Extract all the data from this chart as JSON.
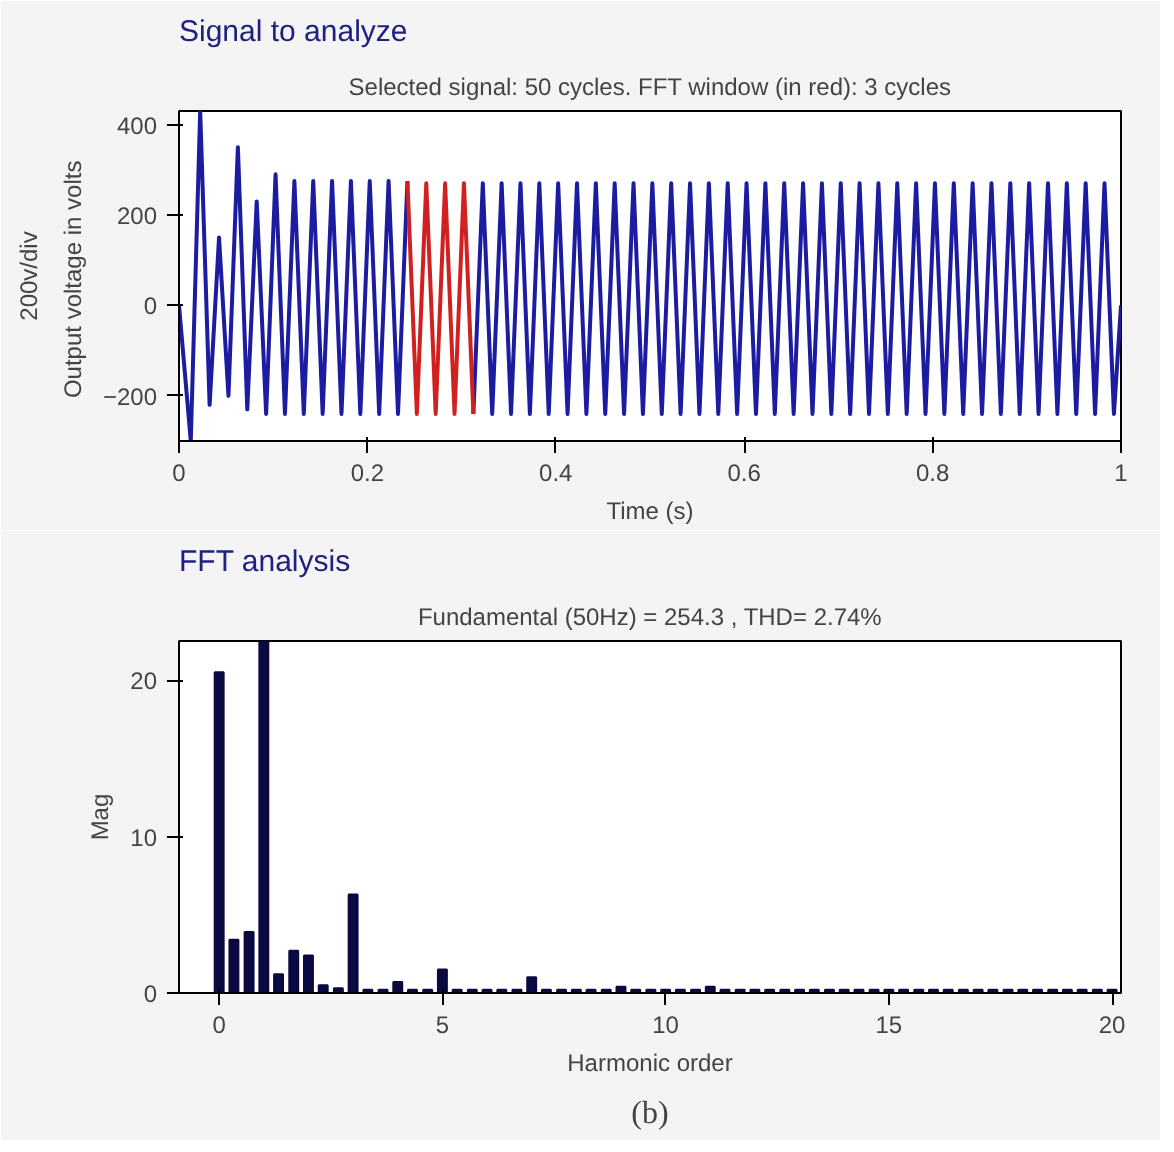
{
  "chart_data": [
    {
      "type": "line",
      "title": "Signal to analyze",
      "subtitle": "Selected signal: 50 cycles. FFT window (in red): 3 cycles",
      "xlabel": "Time (s)",
      "ylabel": "Output voltage in  volts",
      "annotations": [
        "200v/div"
      ],
      "xlim": [
        0,
        1
      ],
      "ylim": [
        -300,
        430
      ],
      "xticks": [
        0,
        0.2,
        0.4,
        0.6,
        0.8,
        1
      ],
      "yticks": [
        -200,
        0,
        200,
        400
      ],
      "grid": false,
      "marker": "none",
      "line_style": "solid",
      "series": [
        {
          "color": "#1c1ca0",
          "x": [
            0,
            0.0125,
            0.0225,
            0.0325,
            0.0425,
            0.0525,
            0.0625,
            0.0725,
            0.0825,
            0.0925,
            0.1025,
            0.1125,
            0.1225,
            0.1325,
            0.1425,
            0.1525,
            0.1625,
            0.1725,
            0.1825,
            0.1925,
            0.2025,
            0.2125,
            0.2225,
            0.2325,
            0.2425,
            0.2525,
            0.2625,
            0.2725,
            0.2825,
            0.2925,
            0.3025,
            0.3125,
            0.3225,
            0.3325,
            0.3425,
            0.3525,
            0.3625,
            0.3725,
            0.3825,
            0.3925,
            0.4025,
            0.4125,
            0.4225,
            0.4325,
            0.4425,
            0.4525,
            0.4625,
            0.4725,
            0.4825,
            0.4925,
            0.5025,
            0.5125,
            0.5225,
            0.5325,
            0.5425,
            0.5525,
            0.5625,
            0.5725,
            0.5825,
            0.5925,
            0.6025,
            0.6125,
            0.6225,
            0.6325,
            0.6425,
            0.6525,
            0.6625,
            0.6725,
            0.6825,
            0.6925,
            0.7025,
            0.7125,
            0.7225,
            0.7325,
            0.7425,
            0.7525,
            0.7625,
            0.7725,
            0.7825,
            0.7925,
            0.8025,
            0.8125,
            0.8225,
            0.8325,
            0.8425,
            0.8525,
            0.8625,
            0.8725,
            0.8825,
            0.8925,
            0.9025,
            0.9125,
            0.9225,
            0.9325,
            0.9425,
            0.9525,
            0.9625,
            0.9725,
            0.9825,
            0.9925,
            1.0
          ],
          "values": [
            0,
            -300,
            430,
            -220,
            150,
            -200,
            350,
            -230,
            230,
            -240,
            290,
            -240,
            275,
            -240,
            275,
            -240,
            275,
            -240,
            275,
            -240,
            275,
            -240,
            275,
            -240,
            275,
            null,
            null,
            null,
            null,
            null,
            null,
            -240,
            270,
            -240,
            270,
            -240,
            270,
            -240,
            270,
            -240,
            270,
            -240,
            270,
            -240,
            270,
            -240,
            270,
            -240,
            270,
            -240,
            270,
            -240,
            270,
            -240,
            270,
            -240,
            270,
            -240,
            270,
            -240,
            270,
            -240,
            270,
            -240,
            270,
            -240,
            270,
            -240,
            270,
            -240,
            270,
            -240,
            270,
            -240,
            270,
            -240,
            270,
            -240,
            270,
            -240,
            270,
            -240,
            270,
            -240,
            270,
            -240,
            270,
            -240,
            270,
            -240,
            270,
            -240,
            270,
            -240,
            270,
            -240,
            270,
            -240,
            270,
            -240,
            0
          ]
        },
        {
          "color": "#d02020",
          "x": [
            0.2425,
            0.2525,
            0.2625,
            0.2725,
            0.2825,
            0.2925,
            0.3025,
            0.3125
          ],
          "values": [
            275,
            -240,
            270,
            -240,
            270,
            -240,
            270,
            -240
          ]
        }
      ]
    },
    {
      "type": "bar",
      "title": "FFT analysis",
      "subtitle": "Fundamental (50Hz) = 254.3 , THD= 2.74%",
      "xlabel": "Harmonic order",
      "ylabel": "Mag",
      "annotations": [
        "(b)"
      ],
      "xlim": [
        -0.9,
        20.2
      ],
      "ylim": [
        0,
        22.5
      ],
      "xticks": [
        0,
        5,
        10,
        15,
        20
      ],
      "yticks": [
        0,
        10,
        20
      ],
      "grid": false,
      "color": "#0a0a40",
      "x": [
        0,
        0.33,
        0.67,
        1,
        1.33,
        1.67,
        2,
        2.33,
        2.67,
        3,
        3.33,
        3.67,
        4,
        4.33,
        4.67,
        5,
        5.33,
        5.67,
        6,
        6.33,
        6.67,
        7,
        7.33,
        7.67,
        8,
        8.33,
        8.67,
        9,
        9.33,
        9.67,
        10,
        10.33,
        10.67,
        11,
        11.33,
        11.67,
        12,
        12.33,
        12.67,
        13,
        13.33,
        13.67,
        14,
        14.33,
        14.67,
        15,
        15.33,
        15.67,
        16,
        16.33,
        16.67,
        17,
        17.33,
        17.67,
        18,
        18.33,
        18.67,
        19,
        19.33,
        19.67,
        20
      ],
      "values": [
        20.5,
        3.4,
        3.9,
        22.5,
        1.2,
        2.7,
        2.4,
        0.5,
        0.3,
        6.3,
        0.2,
        0.2,
        0.7,
        0.2,
        0.2,
        1.5,
        0.2,
        0.2,
        0.2,
        0.2,
        0.2,
        1.0,
        0.2,
        0.2,
        0.2,
        0.2,
        0.2,
        0.4,
        0.2,
        0.2,
        0.2,
        0.2,
        0.2,
        0.4,
        0.2,
        0.2,
        0.2,
        0.2,
        0.2,
        0.2,
        0.2,
        0.2,
        0.2,
        0.2,
        0.2,
        0.2,
        0.2,
        0.2,
        0.2,
        0.2,
        0.2,
        0.2,
        0.2,
        0.2,
        0.2,
        0.2,
        0.2,
        0.2,
        0.2,
        0.2,
        0.2
      ]
    }
  ]
}
